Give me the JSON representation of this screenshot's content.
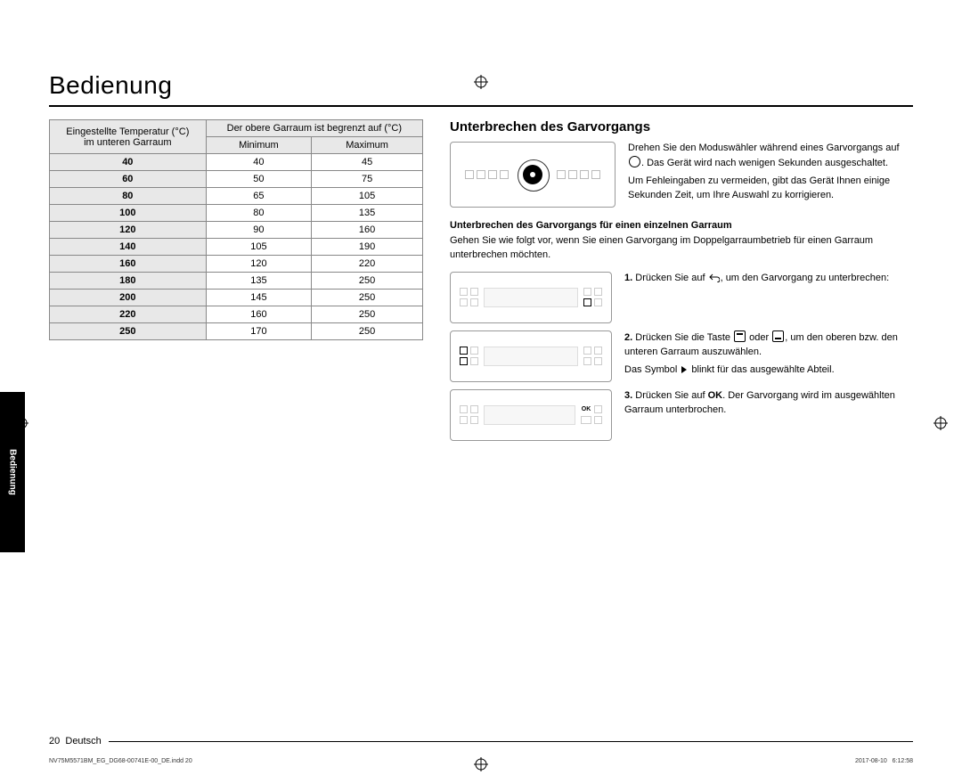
{
  "title": "Bedienung",
  "side_tab": "Bedienung",
  "table": {
    "header_col1_line1": "Eingestellte Temperatur (°C)",
    "header_col1_line2": "im unteren Garraum",
    "header_span": "Der obere Garraum ist begrenzt auf (°C)",
    "header_min": "Minimum",
    "header_max": "Maximum",
    "rows": [
      {
        "a": "40",
        "b": "40",
        "c": "45"
      },
      {
        "a": "60",
        "b": "50",
        "c": "75"
      },
      {
        "a": "80",
        "b": "65",
        "c": "105"
      },
      {
        "a": "100",
        "b": "80",
        "c": "135"
      },
      {
        "a": "120",
        "b": "90",
        "c": "160"
      },
      {
        "a": "140",
        "b": "105",
        "c": "190"
      },
      {
        "a": "160",
        "b": "120",
        "c": "220"
      },
      {
        "a": "180",
        "b": "135",
        "c": "250"
      },
      {
        "a": "200",
        "b": "145",
        "c": "250"
      },
      {
        "a": "220",
        "b": "160",
        "c": "250"
      },
      {
        "a": "250",
        "b": "170",
        "c": "250"
      }
    ]
  },
  "right": {
    "heading": "Unterbrechen des Garvorgangs",
    "intro_1a": "Drehen Sie den Moduswähler während eines Garvorgangs auf ",
    "intro_1b": ". Das Gerät wird nach wenigen Sekunden ausgeschaltet.",
    "intro_2": "Um Fehleingaben zu vermeiden, gibt das Gerät Ihnen einige Sekunden Zeit, um Ihre Auswahl zu korrigieren.",
    "sub2": "Unterbrechen des Garvorgangs für einen einzelnen Garraum",
    "sub2_desc": "Gehen Sie wie folgt vor, wenn Sie einen Garvorgang im Doppelgarraumbetrieb für einen Garraum unterbrechen möchten.",
    "step1_n": "1.",
    "step1_a": "Drücken Sie auf ",
    "step1_b": ", um den Garvorgang zu unterbrechen:",
    "step2_n": "2.",
    "step2_a": "Drücken Sie die Taste ",
    "step2_mid": " oder ",
    "step2_b": ", um den oberen bzw. den unteren Garraum auszuwählen.",
    "step2_c_a": "Das Symbol ",
    "step2_c_b": " blinkt für das ausgewählte Abteil.",
    "step3_n": "3.",
    "step3_a": "Drücken Sie auf ",
    "step3_ok": "OK",
    "step3_b": ". Der Garvorgang wird im ausgewählten Garraum unterbrochen.",
    "ok_label": "OK"
  },
  "footer": {
    "page": "20",
    "lang": "Deutsch"
  },
  "meta": {
    "left": "NV75M5571BM_EG_DG68-00741E-00_DE.indd   20",
    "right": "2017-08-10     6:12:58"
  },
  "colors": {
    "header_bg": "#e8e8e8",
    "border": "#888888"
  }
}
